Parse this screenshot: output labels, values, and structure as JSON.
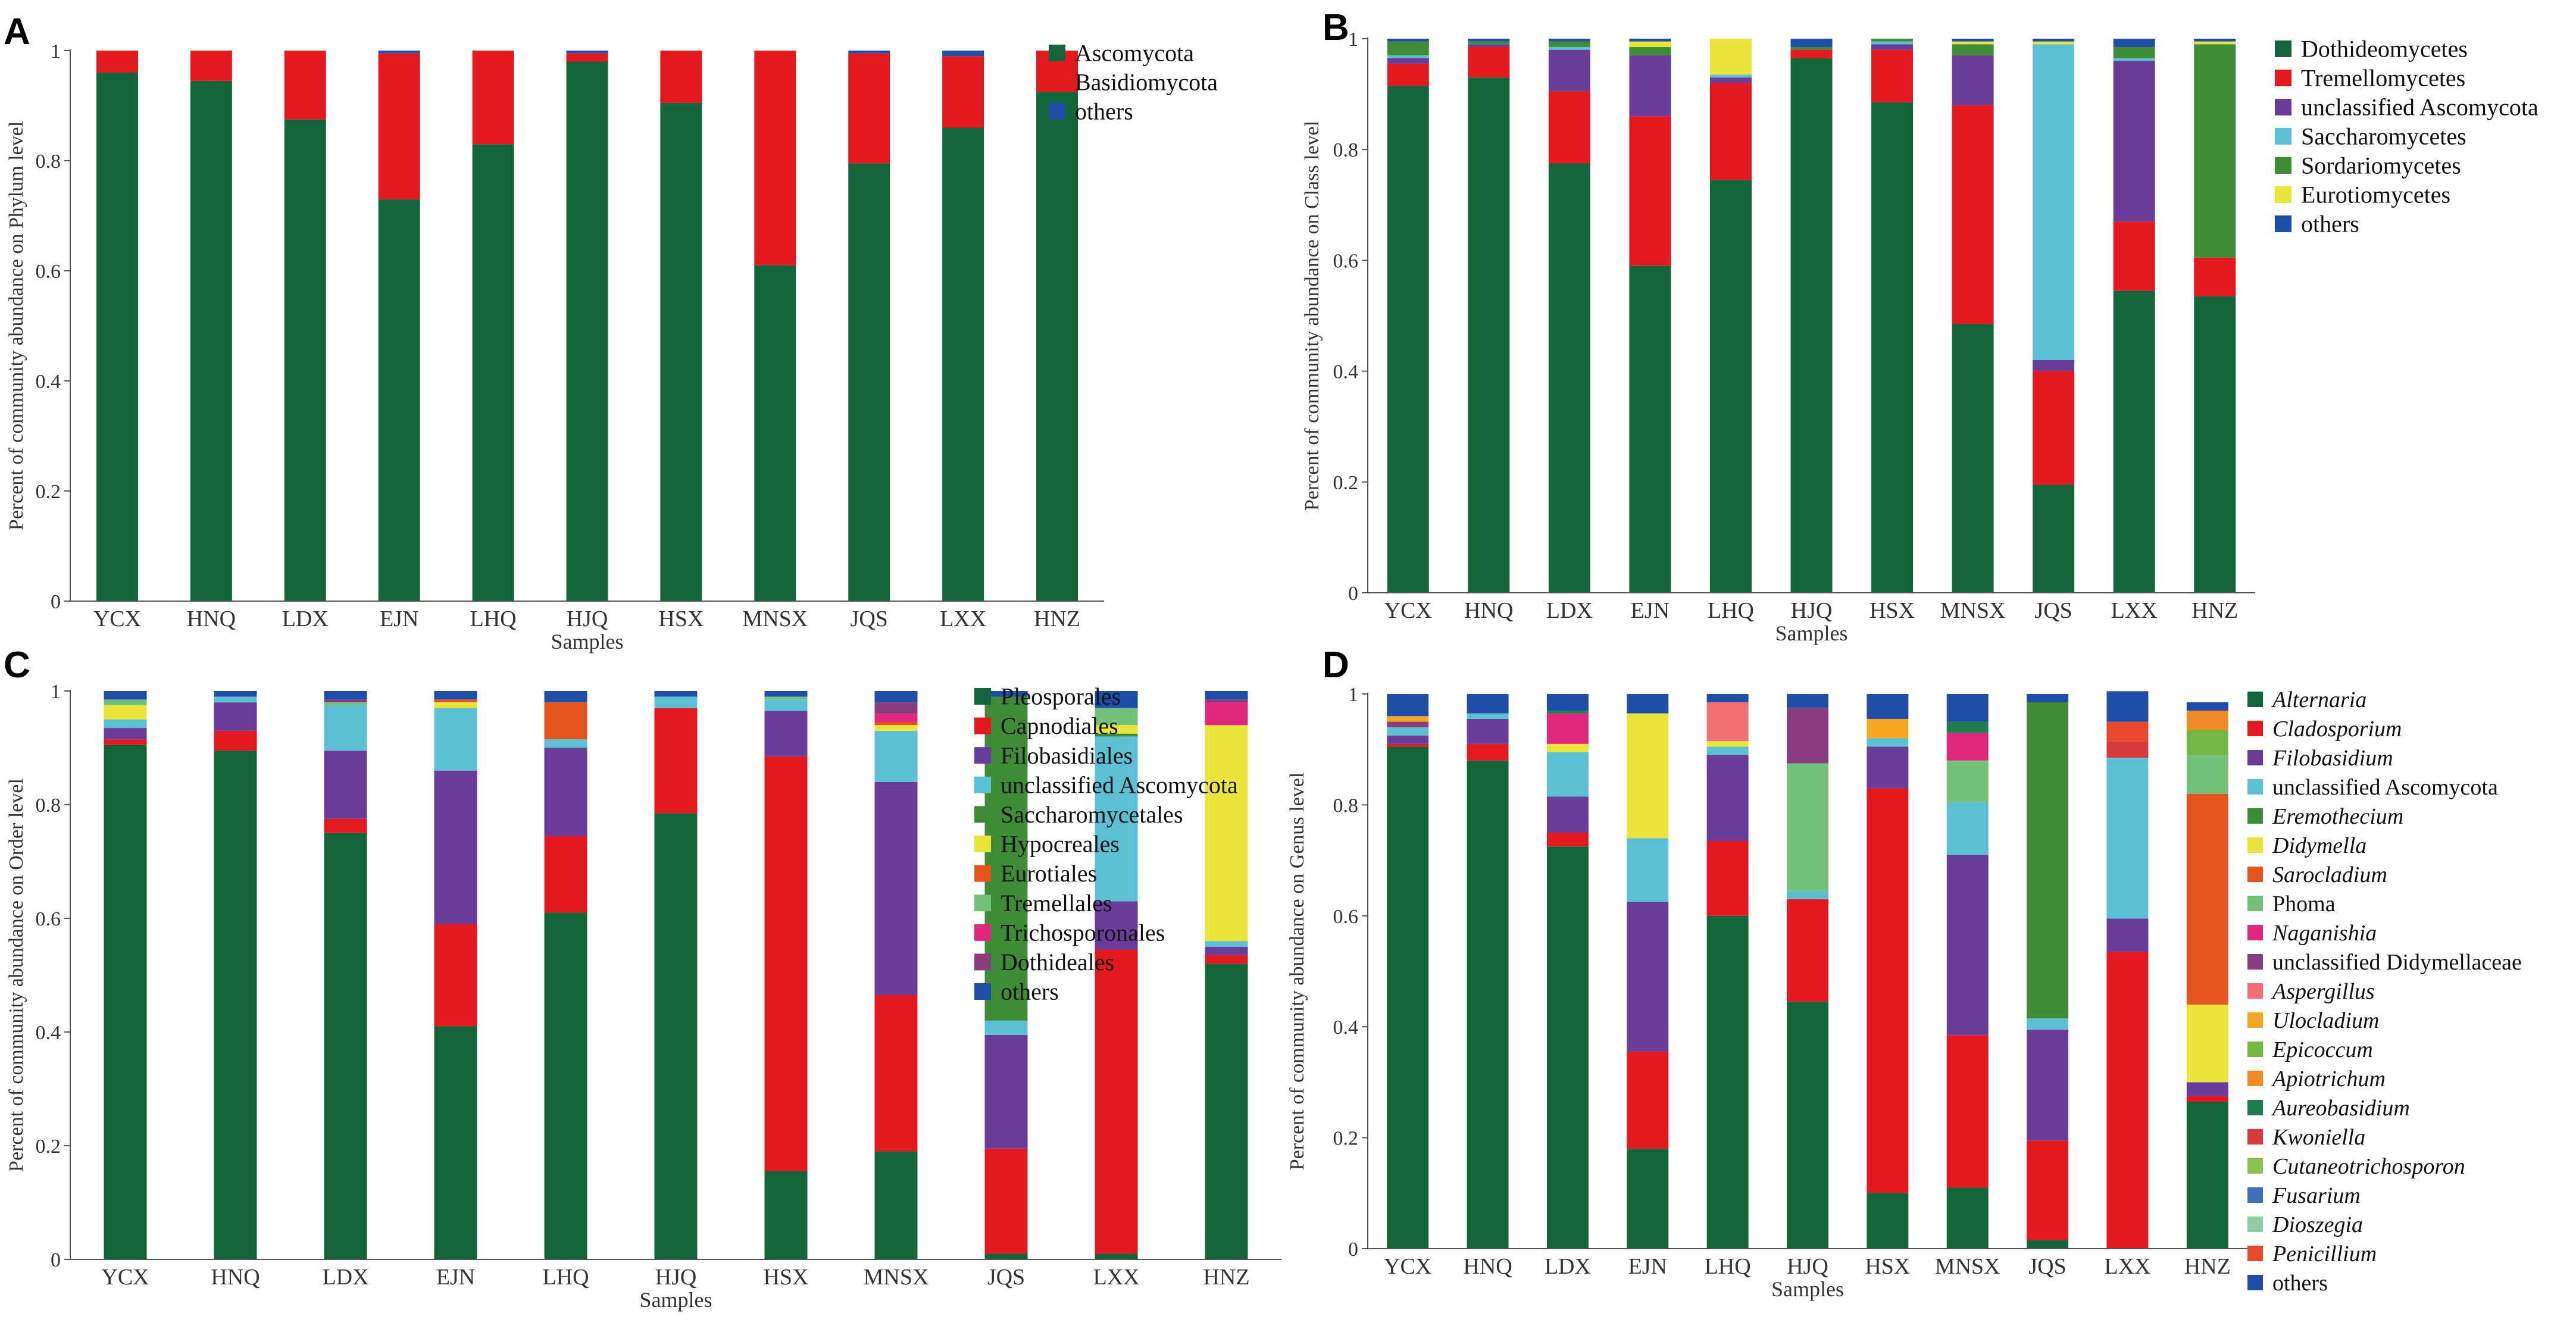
{
  "chart_data": [
    {
      "type": "bar",
      "stacked": true,
      "panel_label": "A",
      "title": "",
      "xlabel": "Samples",
      "ylabel": "Percent of community abundance on Phylum level",
      "ylim": [
        0,
        1
      ],
      "yticks": [
        "0",
        "0.2",
        "0.4",
        "0.6",
        "0.8",
        "1"
      ],
      "categories": [
        "YCX",
        "HNQ",
        "LDX",
        "EJN",
        "LHQ",
        "HJQ",
        "HSX",
        "MNSX",
        "JQS",
        "LXX",
        "HNZ"
      ],
      "series": [
        {
          "name": "Ascomycota",
          "color": "#136639",
          "italic": false,
          "values": [
            0.96,
            0.945,
            0.875,
            0.73,
            0.83,
            0.98,
            0.905,
            0.61,
            0.795,
            0.86,
            0.925
          ]
        },
        {
          "name": "Basidiomycota",
          "color": "#e3191f",
          "italic": false,
          "values": [
            0.04,
            0.055,
            0.125,
            0.265,
            0.17,
            0.015,
            0.095,
            0.39,
            0.2,
            0.13,
            0.075
          ]
        },
        {
          "name": "others",
          "color": "#1f4ea8",
          "italic": false,
          "values": [
            0.0,
            0.0,
            0.0,
            0.005,
            0.0,
            0.005,
            0.0,
            0.0,
            0.005,
            0.01,
            0.0
          ]
        }
      ]
    },
    {
      "type": "bar",
      "stacked": true,
      "panel_label": "B",
      "title": "",
      "xlabel": "Samples",
      "ylabel": "Percent of community abundance on Class  level",
      "ylim": [
        0,
        1
      ],
      "yticks": [
        "0",
        "0.2",
        "0.4",
        "0.6",
        "0.8",
        "1"
      ],
      "categories": [
        "YCX",
        "HNQ",
        "LDX",
        "EJN",
        "LHQ",
        "HJQ",
        "HSX",
        "MNSX",
        "JQS",
        "LXX",
        "HNZ"
      ],
      "series": [
        {
          "name": "Dothideomycetes",
          "color": "#136639",
          "italic": false,
          "values": [
            0.915,
            0.93,
            0.775,
            0.59,
            0.745,
            0.965,
            0.885,
            0.485,
            0.195,
            0.545,
            0.535
          ]
        },
        {
          "name": "Tremellomycetes",
          "color": "#e3191f",
          "italic": false,
          "values": [
            0.04,
            0.055,
            0.13,
            0.27,
            0.175,
            0.015,
            0.095,
            0.395,
            0.205,
            0.125,
            0.07
          ]
        },
        {
          "name": "unclassified Ascomycota",
          "color": "#6a3d9a",
          "italic": false,
          "values": [
            0.01,
            0.005,
            0.075,
            0.11,
            0.01,
            0.0,
            0.01,
            0.09,
            0.02,
            0.29,
            0.0
          ]
        },
        {
          "name": "Saccharomycetes",
          "color": "#5bc0d4",
          "italic": false,
          "values": [
            0.005,
            0.0,
            0.005,
            0.0,
            0.005,
            0.0,
            0.005,
            0.0,
            0.57,
            0.005,
            0.0
          ]
        },
        {
          "name": "Sordariomycetes",
          "color": "#3e8c36",
          "italic": false,
          "values": [
            0.025,
            0.005,
            0.01,
            0.015,
            0.0,
            0.005,
            0.005,
            0.02,
            0.0,
            0.02,
            0.385
          ]
        },
        {
          "name": "Eurotiomycetes",
          "color": "#ebe43a",
          "italic": false,
          "values": [
            0.0,
            0.0,
            0.0,
            0.01,
            0.065,
            0.0,
            0.0,
            0.005,
            0.005,
            0.0,
            0.005
          ]
        },
        {
          "name": "others",
          "color": "#1f4ea8",
          "italic": false,
          "values": [
            0.005,
            0.005,
            0.005,
            0.005,
            0.0,
            0.015,
            0.0,
            0.005,
            0.005,
            0.015,
            0.005
          ]
        }
      ]
    },
    {
      "type": "bar",
      "stacked": true,
      "panel_label": "C",
      "title": "",
      "xlabel": "Samples",
      "ylabel": "Percent of community abundance on Order level",
      "ylim": [
        0,
        1
      ],
      "yticks": [
        "0",
        "0.2",
        "0.4",
        "0.6",
        "0.8",
        "1"
      ],
      "categories": [
        "YCX",
        "HNQ",
        "LDX",
        "EJN",
        "LHQ",
        "HJQ",
        "HSX",
        "MNSX",
        "JQS",
        "LXX",
        "HNZ"
      ],
      "series": [
        {
          "name": "Pleosporales",
          "color": "#136639",
          "italic": false,
          "values": [
            0.905,
            0.895,
            0.75,
            0.41,
            0.61,
            0.785,
            0.155,
            0.19,
            0.01,
            0.01,
            0.52
          ]
        },
        {
          "name": "Capnodiales",
          "color": "#e3191f",
          "italic": false,
          "values": [
            0.01,
            0.035,
            0.025,
            0.18,
            0.135,
            0.185,
            0.73,
            0.275,
            0.185,
            0.535,
            0.015
          ]
        },
        {
          "name": "Filobasidiales",
          "color": "#6a3d9a",
          "italic": false,
          "values": [
            0.02,
            0.05,
            0.12,
            0.27,
            0.155,
            0.0,
            0.08,
            0.375,
            0.2,
            0.085,
            0.015
          ]
        },
        {
          "name": "unclassified Ascomycota",
          "color": "#5bc0d4",
          "italic": false,
          "values": [
            0.015,
            0.01,
            0.08,
            0.11,
            0.015,
            0.02,
            0.02,
            0.09,
            0.025,
            0.29,
            0.01
          ]
        },
        {
          "name": "Saccharomycetales",
          "color": "#3e8c36",
          "italic": false,
          "values": [
            0.0,
            0.0,
            0.0,
            0.0,
            0.0,
            0.0,
            0.0,
            0.0,
            0.57,
            0.005,
            0.0
          ]
        },
        {
          "name": "Hypocreales",
          "color": "#ebe43a",
          "italic": false,
          "values": [
            0.025,
            0.0,
            0.0,
            0.01,
            0.0,
            0.0,
            0.0,
            0.01,
            0.0,
            0.015,
            0.38
          ]
        },
        {
          "name": "Eurotiales",
          "color": "#e6541e",
          "italic": false,
          "values": [
            0.0,
            0.0,
            0.0,
            0.005,
            0.065,
            0.0,
            0.0,
            0.005,
            0.0,
            0.0,
            0.0
          ]
        },
        {
          "name": "Tremellales",
          "color": "#74c27a",
          "italic": false,
          "values": [
            0.01,
            0.0,
            0.005,
            0.0,
            0.0,
            0.0,
            0.005,
            0.0,
            0.0,
            0.03,
            0.0
          ]
        },
        {
          "name": "Trichosporonales",
          "color": "#e0267d",
          "italic": false,
          "values": [
            0.0,
            0.0,
            0.0,
            0.0,
            0.0,
            0.0,
            0.0,
            0.015,
            0.0,
            0.0,
            0.04
          ]
        },
        {
          "name": "Dothideales",
          "color": "#8a3d7e",
          "italic": false,
          "values": [
            0.0,
            0.0,
            0.005,
            0.0,
            0.0,
            0.0,
            0.0,
            0.02,
            0.0,
            0.0,
            0.005
          ]
        },
        {
          "name": "others",
          "color": "#1f4ea8",
          "italic": false,
          "values": [
            0.015,
            0.01,
            0.015,
            0.015,
            0.02,
            0.01,
            0.01,
            0.02,
            0.01,
            0.03,
            0.015
          ]
        }
      ]
    },
    {
      "type": "bar",
      "stacked": true,
      "panel_label": "D",
      "title": "",
      "xlabel": "Samples",
      "ylabel": "Percent of community abundance on Genus level",
      "ylim": [
        0,
        1
      ],
      "yticks": [
        "0",
        "0.2",
        "0.4",
        "0.6",
        "0.8",
        "1"
      ],
      "categories": [
        "YCX",
        "HNQ",
        "LDX",
        "EJN",
        "LHQ",
        "HJQ",
        "HSX",
        "MNSX",
        "JQS",
        "LXX",
        "HNZ"
      ],
      "series": [
        {
          "name": "Alternaria",
          "color": "#136639",
          "italic": true,
          "values": [
            0.905,
            0.88,
            0.725,
            0.18,
            0.6,
            0.445,
            0.1,
            0.11,
            0.015,
            0.0,
            0.265
          ]
        },
        {
          "name": "Cladosporium",
          "color": "#e3191f",
          "italic": true,
          "values": [
            0.005,
            0.03,
            0.025,
            0.175,
            0.135,
            0.185,
            0.73,
            0.275,
            0.18,
            0.535,
            0.01
          ]
        },
        {
          "name": "Filobasidium",
          "color": "#6a3d9a",
          "italic": true,
          "values": [
            0.015,
            0.045,
            0.065,
            0.27,
            0.155,
            0.0,
            0.075,
            0.325,
            0.2,
            0.06,
            0.025
          ]
        },
        {
          "name": "unclassified Ascomycota",
          "color": "#5bc0d4",
          "italic": false,
          "values": [
            0.015,
            0.01,
            0.08,
            0.115,
            0.015,
            0.015,
            0.015,
            0.095,
            0.02,
            0.29,
            0.0
          ]
        },
        {
          "name": "Eremothecium",
          "color": "#3e8c36",
          "italic": true,
          "values": [
            0.0,
            0.0,
            0.0,
            0.0,
            0.0,
            0.0,
            0.0,
            0.0,
            0.57,
            0.0,
            0.0
          ]
        },
        {
          "name": "Didymella",
          "color": "#ebe43a",
          "italic": true,
          "values": [
            0.0,
            0.0,
            0.015,
            0.225,
            0.01,
            0.0,
            0.0,
            0.0,
            0.0,
            0.0,
            0.14
          ]
        },
        {
          "name": "Sarocladium",
          "color": "#e6541e",
          "italic": true,
          "values": [
            0.0,
            0.0,
            0.0,
            0.0,
            0.0,
            0.0,
            0.0,
            0.0,
            0.0,
            0.0,
            0.38
          ]
        },
        {
          "name": "Phoma",
          "color": "#74c27a",
          "italic": false,
          "values": [
            0.0,
            0.0,
            0.0,
            0.0,
            0.0,
            0.23,
            0.0,
            0.075,
            0.0,
            0.0,
            0.07
          ]
        },
        {
          "name": "Naganishia",
          "color": "#e0267d",
          "italic": true,
          "values": [
            0.0,
            0.0,
            0.055,
            0.0,
            0.0,
            0.0,
            0.0,
            0.05,
            0.0,
            0.0,
            0.0
          ]
        },
        {
          "name": "unclassified Didymellaceae",
          "color": "#8a3d7e",
          "italic": false,
          "values": [
            0.01,
            0.0,
            0.0,
            0.0,
            0.0,
            0.1,
            0.0,
            0.0,
            0.0,
            0.0,
            0.0
          ]
        },
        {
          "name": "Aspergillus",
          "color": "#ef6f73",
          "italic": true,
          "values": [
            0.0,
            0.0,
            0.0,
            0.0,
            0.07,
            0.0,
            0.0,
            0.0,
            0.0,
            0.0,
            0.0
          ]
        },
        {
          "name": "Ulocladium",
          "color": "#f5a623",
          "italic": true,
          "values": [
            0.01,
            0.0,
            0.0,
            0.0,
            0.0,
            0.0,
            0.035,
            0.0,
            0.0,
            0.0,
            0.0
          ]
        },
        {
          "name": "Epicoccum",
          "color": "#72b843",
          "italic": true,
          "values": [
            0.0,
            0.0,
            0.0,
            0.0,
            0.0,
            0.0,
            0.0,
            0.0,
            0.0,
            0.0,
            0.045
          ]
        },
        {
          "name": "Apiotrichum",
          "color": "#f08a24",
          "italic": true,
          "values": [
            0.0,
            0.0,
            0.0,
            0.0,
            0.0,
            0.0,
            0.0,
            0.0,
            0.0,
            0.0,
            0.035
          ]
        },
        {
          "name": "Aureobasidium",
          "color": "#1e7f4e",
          "italic": true,
          "values": [
            0.0,
            0.0,
            0.005,
            0.0,
            0.0,
            0.0,
            0.0,
            0.02,
            0.0,
            0.0,
            0.0
          ]
        },
        {
          "name": "Kwoniella",
          "color": "#d93a3a",
          "italic": true,
          "values": [
            0.0,
            0.0,
            0.0,
            0.0,
            0.0,
            0.0,
            0.0,
            0.0,
            0.0,
            0.03,
            0.0
          ]
        },
        {
          "name": "Cutaneotrichosporon",
          "color": "#8bc34a",
          "italic": true,
          "values": [
            0.0,
            0.0,
            0.0,
            0.0,
            0.0,
            0.0,
            0.0,
            0.0,
            0.0,
            0.0,
            0.0
          ]
        },
        {
          "name": "Fusarium",
          "color": "#3d70b8",
          "italic": true,
          "values": [
            0.0,
            0.0,
            0.0,
            0.0,
            0.0,
            0.0,
            0.0,
            0.0,
            0.0,
            0.0,
            0.0
          ]
        },
        {
          "name": "Dioszegia",
          "color": "#8fcfa4",
          "italic": true,
          "values": [
            0.0,
            0.0,
            0.0,
            0.0,
            0.0,
            0.0,
            0.0,
            0.0,
            0.0,
            0.0,
            0.0
          ]
        },
        {
          "name": "Penicillium",
          "color": "#e8482c",
          "italic": true,
          "values": [
            0.0,
            0.0,
            0.0,
            0.0,
            0.0,
            0.0,
            0.0,
            0.0,
            0.0,
            0.035,
            0.0
          ]
        },
        {
          "name": "others",
          "color": "#1f4ea8",
          "italic": false,
          "values": [
            0.04,
            0.035,
            0.03,
            0.035,
            0.015,
            0.025,
            0.045,
            0.05,
            0.015,
            0.055,
            0.015
          ]
        }
      ]
    }
  ]
}
